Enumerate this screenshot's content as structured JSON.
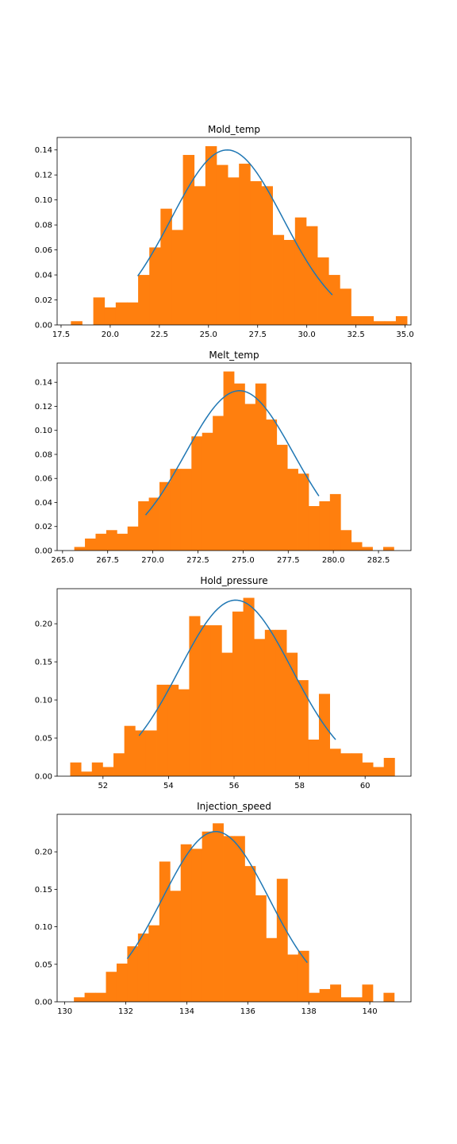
{
  "colors": {
    "bars": "#ff7f0e",
    "curve": "#1f77b4",
    "axes": "#000000"
  },
  "chart_data": [
    {
      "type": "bar",
      "title": "Mold_temp",
      "xlim": [
        17.3,
        35.3
      ],
      "ylim": [
        0,
        0.15
      ],
      "xticks": [
        17.5,
        20.0,
        22.5,
        25.0,
        27.5,
        30.0,
        32.5,
        35.0
      ],
      "xtick_labels": [
        "17.5",
        "20.0",
        "22.5",
        "25.0",
        "27.5",
        "30.0",
        "32.5",
        "35.0"
      ],
      "yticks": [
        0,
        0.02,
        0.04,
        0.06,
        0.08,
        0.1,
        0.12,
        0.14
      ],
      "ytick_labels": [
        "0.00",
        "0.02",
        "0.04",
        "0.06",
        "0.08",
        "0.10",
        "0.12",
        "0.14"
      ],
      "bin_edges": [
        18.0,
        18.57,
        19.14,
        19.71,
        20.28,
        20.85,
        21.42,
        21.99,
        22.56,
        23.13,
        23.7,
        24.27,
        24.84,
        25.41,
        25.98,
        26.55,
        27.12,
        27.69,
        28.26,
        28.83,
        29.4,
        29.97,
        30.54,
        31.11,
        31.68,
        32.25,
        32.82,
        33.39,
        33.96,
        34.53,
        35.1
      ],
      "values": [
        0.003,
        0,
        0.022,
        0.014,
        0.018,
        0.018,
        0.04,
        0.062,
        0.093,
        0.076,
        0.136,
        0.111,
        0.143,
        0.128,
        0.118,
        0.129,
        0.115,
        0.111,
        0.072,
        0.068,
        0.086,
        0.079,
        0.054,
        0.04,
        0.029,
        0.007,
        0.007,
        0.003,
        0.003,
        0.007
      ],
      "curve": {
        "type": "normal",
        "mean": 25.95,
        "std": 2.85,
        "peak": 0.14,
        "x_range": [
          21.4,
          31.3
        ]
      }
    },
    {
      "type": "bar",
      "title": "Melt_temp",
      "xlim": [
        264.7,
        284.3
      ],
      "ylim": [
        0,
        0.156
      ],
      "xticks": [
        265.0,
        267.5,
        270.0,
        272.5,
        275.0,
        277.5,
        280.0,
        282.5
      ],
      "xtick_labels": [
        "265.0",
        "267.5",
        "270.0",
        "272.5",
        "275.0",
        "277.5",
        "280.0",
        "282.5"
      ],
      "yticks": [
        0,
        0.02,
        0.04,
        0.06,
        0.08,
        0.1,
        0.12,
        0.14
      ],
      "ytick_labels": [
        "0.00",
        "0.02",
        "0.04",
        "0.06",
        "0.08",
        "0.10",
        "0.12",
        "0.14"
      ],
      "bin_edges": [
        265.65,
        266.24,
        266.83,
        267.42,
        268.01,
        268.6,
        269.19,
        269.78,
        270.37,
        270.96,
        271.55,
        272.14,
        272.73,
        273.32,
        273.91,
        274.5,
        275.09,
        275.68,
        276.27,
        276.86,
        277.45,
        278.04,
        278.63,
        279.22,
        279.81,
        280.4,
        280.99,
        281.58,
        282.17,
        282.76,
        283.35
      ],
      "values": [
        0.003,
        0.01,
        0.014,
        0.017,
        0.014,
        0.02,
        0.041,
        0.044,
        0.057,
        0.068,
        0.068,
        0.095,
        0.098,
        0.112,
        0.149,
        0.139,
        0.122,
        0.139,
        0.109,
        0.088,
        0.068,
        0.064,
        0.037,
        0.041,
        0.047,
        0.017,
        0.007,
        0.003,
        0,
        0.003
      ],
      "curve": {
        "type": "normal",
        "mean": 274.8,
        "std": 3.0,
        "peak": 0.133,
        "x_range": [
          269.6,
          279.2
        ]
      }
    },
    {
      "type": "bar",
      "title": "Hold_pressure",
      "xlim": [
        50.6,
        61.4
      ],
      "ylim": [
        0,
        0.246
      ],
      "xticks": [
        52,
        54,
        56,
        58,
        60
      ],
      "xtick_labels": [
        "52",
        "54",
        "56",
        "58",
        "60"
      ],
      "yticks": [
        0,
        0.05,
        0.1,
        0.15,
        0.2
      ],
      "ytick_labels": [
        "0.00",
        "0.05",
        "0.10",
        "0.15",
        "0.20"
      ],
      "bin_edges": [
        51.0,
        51.33,
        51.66,
        51.99,
        52.32,
        52.65,
        52.98,
        53.31,
        53.64,
        53.97,
        54.3,
        54.63,
        54.96,
        55.29,
        55.62,
        55.95,
        56.28,
        56.61,
        56.94,
        57.27,
        57.6,
        57.93,
        58.26,
        58.59,
        58.92,
        59.25,
        59.58,
        59.91,
        60.24,
        60.57,
        60.9
      ],
      "values": [
        0.018,
        0.006,
        0.018,
        0.012,
        0.03,
        0.066,
        0.06,
        0.06,
        0.12,
        0.12,
        0.114,
        0.21,
        0.198,
        0.198,
        0.162,
        0.216,
        0.234,
        0.18,
        0.192,
        0.192,
        0.162,
        0.126,
        0.048,
        0.108,
        0.036,
        0.03,
        0.03,
        0.018,
        0.012,
        0.024
      ],
      "curve": {
        "type": "normal",
        "mean": 56.05,
        "std": 1.72,
        "peak": 0.231,
        "x_range": [
          53.1,
          59.1
        ]
      }
    },
    {
      "type": "bar",
      "title": "Injection_speed",
      "xlim": [
        129.75,
        141.35
      ],
      "ylim": [
        0,
        0.25
      ],
      "xticks": [
        130,
        132,
        134,
        136,
        138,
        140
      ],
      "xtick_labels": [
        "130",
        "132",
        "134",
        "136",
        "138",
        "140"
      ],
      "yticks": [
        0,
        0.05,
        0.1,
        0.15,
        0.2
      ],
      "ytick_labels": [
        "0.00",
        "0.05",
        "0.10",
        "0.15",
        "0.20"
      ],
      "bin_edges": [
        130.3,
        130.65,
        131.0,
        131.35,
        131.7,
        132.05,
        132.4,
        132.75,
        133.1,
        133.45,
        133.8,
        134.15,
        134.5,
        134.85,
        135.2,
        135.55,
        135.9,
        136.25,
        136.6,
        136.95,
        137.3,
        137.65,
        138.0,
        138.35,
        138.7,
        139.05,
        139.4,
        139.75,
        140.1,
        140.45,
        140.8
      ],
      "values": [
        0.006,
        0.012,
        0.012,
        0.04,
        0.051,
        0.074,
        0.091,
        0.102,
        0.187,
        0.148,
        0.21,
        0.204,
        0.227,
        0.238,
        0.221,
        0.221,
        0.181,
        0.142,
        0.085,
        0.164,
        0.063,
        0.068,
        0.012,
        0.017,
        0.023,
        0.006,
        0.006,
        0.023,
        0,
        0.012
      ],
      "curve": {
        "type": "normal",
        "mean": 134.95,
        "std": 1.75,
        "peak": 0.227,
        "x_range": [
          132.05,
          137.95
        ]
      }
    }
  ]
}
